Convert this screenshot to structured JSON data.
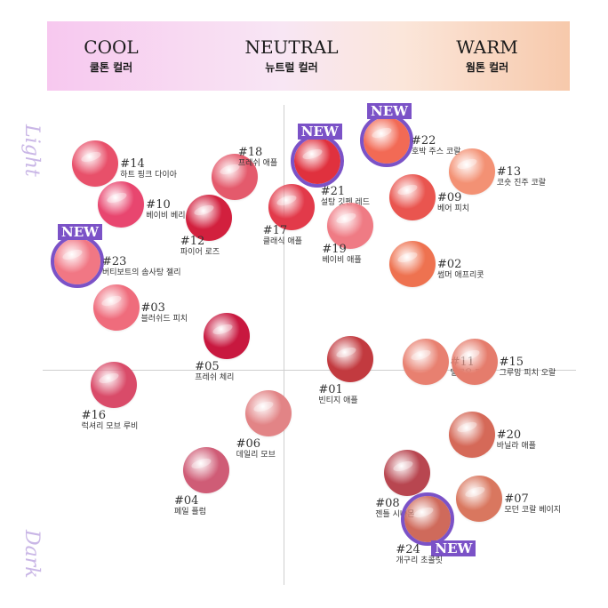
{
  "header": {
    "cool_en": "COOL",
    "cool_ko": "쿨톤 컬러",
    "neutral_en": "NEUTRAL",
    "neutral_ko": "뉴트럴 컬러",
    "warm_en": "WARM",
    "warm_ko": "웜톤 컬러"
  },
  "axis": {
    "top_label": "Light",
    "bottom_label": "Dark"
  },
  "new_label": "NEW",
  "chart_data": {
    "type": "scatter",
    "title": "",
    "xlabel": "",
    "ylabel": "",
    "x_categories": [
      "COOL",
      "NEUTRAL",
      "WARM"
    ],
    "y_categories": [
      "Light",
      "Dark"
    ],
    "xlim": [
      -1,
      1
    ],
    "ylim": [
      -1,
      1
    ],
    "points": [
      {
        "num": "#14",
        "name": "하트 핑크 다이아",
        "x": -0.73,
        "y": 0.8,
        "color": "#e8506a",
        "new": false
      },
      {
        "num": "#18",
        "name": "프레쉬 애플",
        "x": -0.19,
        "y": 0.75,
        "color": "#e45a6c",
        "new": false
      },
      {
        "num": "#21",
        "name": "설탕 깃펜 레드",
        "x": 0.13,
        "y": 0.81,
        "color": "#e0313e",
        "new": true
      },
      {
        "num": "#22",
        "name": "호박 주스 코랄",
        "x": 0.4,
        "y": 0.89,
        "color": "#f26a55",
        "new": true
      },
      {
        "num": "#13",
        "name": "코숏 진주 코랄",
        "x": 0.73,
        "y": 0.77,
        "color": "#f39174",
        "new": false
      },
      {
        "num": "#10",
        "name": "베이비 베리",
        "x": -0.63,
        "y": 0.64,
        "color": "#e8466f",
        "new": false
      },
      {
        "num": "#12",
        "name": "파이어 로즈",
        "x": -0.29,
        "y": 0.59,
        "color": "#d2203e",
        "new": false
      },
      {
        "num": "#17",
        "name": "클래식 애플",
        "x": 0.03,
        "y": 0.63,
        "color": "#e23a4a",
        "new": false
      },
      {
        "num": "#19",
        "name": "베이비 애플",
        "x": 0.26,
        "y": 0.56,
        "color": "#ef7b84",
        "new": false
      },
      {
        "num": "#09",
        "name": "베어 피치",
        "x": 0.5,
        "y": 0.67,
        "color": "#e9554f",
        "new": false
      },
      {
        "num": "#23",
        "name": "버티보트의 솜사탕 젤리",
        "x": -0.8,
        "y": 0.42,
        "color": "#f17784",
        "new": true
      },
      {
        "num": "#02",
        "name": "썸머 애프리콧",
        "x": 0.5,
        "y": 0.41,
        "color": "#ee7250",
        "new": false
      },
      {
        "num": "#03",
        "name": "블러쉬드 피치",
        "x": -0.65,
        "y": 0.24,
        "color": "#ef6c7c",
        "new": false
      },
      {
        "num": "#05",
        "name": "프레쉬 체리",
        "x": -0.22,
        "y": 0.13,
        "color": "#c8183f",
        "new": false
      },
      {
        "num": "#01",
        "name": "빈티지 애플",
        "x": 0.26,
        "y": 0.04,
        "color": "#c23a3f",
        "new": false
      },
      {
        "num": "#11",
        "name": "멜로우 피그",
        "x": 0.55,
        "y": 0.03,
        "color": "#e88070",
        "new": false
      },
      {
        "num": "#15",
        "name": "그루밍 피치 오랄",
        "x": 0.74,
        "y": 0.03,
        "color": "#e57c6c",
        "new": false
      },
      {
        "num": "#16",
        "name": "럭셔리 모브 루비",
        "x": -0.66,
        "y": -0.06,
        "color": "#d94b69",
        "new": false
      },
      {
        "num": "#06",
        "name": "데일리 모브",
        "x": -0.06,
        "y": -0.17,
        "color": "#e28486",
        "new": false
      },
      {
        "num": "#20",
        "name": "바닐라 애플",
        "x": 0.73,
        "y": -0.25,
        "color": "#d56958",
        "new": false
      },
      {
        "num": "#04",
        "name": "페일 플럼",
        "x": -0.3,
        "y": -0.39,
        "color": "#cf5c76",
        "new": false
      },
      {
        "num": "#08",
        "name": "젠틀 시나몬",
        "x": 0.48,
        "y": -0.4,
        "color": "#b84650",
        "new": false
      },
      {
        "num": "#07",
        "name": "모던 코랄 베이지",
        "x": 0.76,
        "y": -0.5,
        "color": "#d9775f",
        "new": false
      },
      {
        "num": "#24",
        "name": "개구리 초콜릿",
        "x": 0.56,
        "y": -0.58,
        "color": "#cf6a5b",
        "new": true
      }
    ]
  }
}
